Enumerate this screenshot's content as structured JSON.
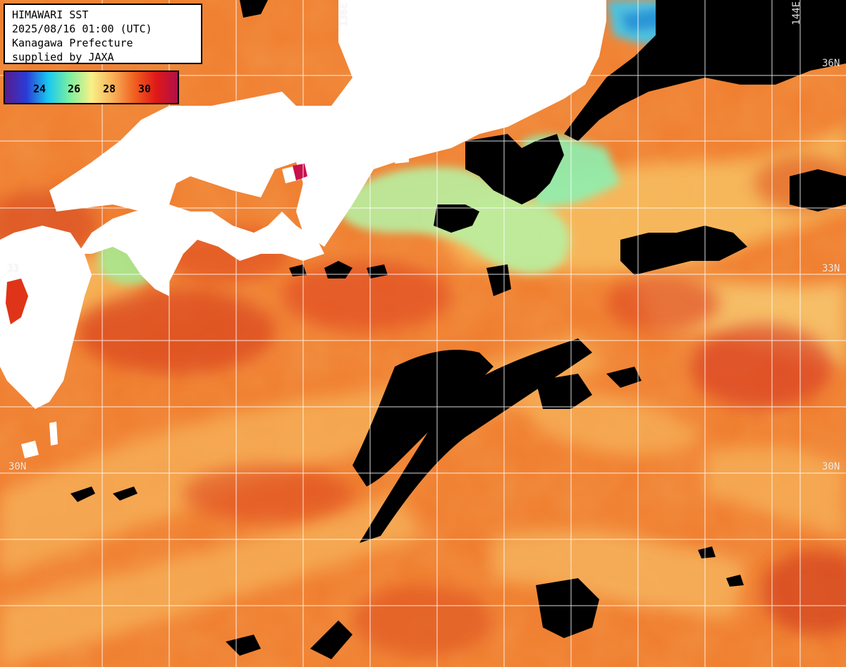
{
  "title_lines": {
    "line1": "HIMAWARI SST",
    "line2": "2025/08/16 01:00 (UTC)",
    "line3": "Kanagawa Prefecture",
    "line4": "supplied by JAXA"
  },
  "legend": {
    "ticks": [
      "24",
      "26",
      "28",
      "30"
    ],
    "colors": [
      "#5a1a8c",
      "#2a3cd8",
      "#18c8f0",
      "#7cf0a0",
      "#f8f088",
      "#f8b058",
      "#f06020",
      "#e01818",
      "#b0104a"
    ]
  },
  "grid_labels": {
    "lon_136": "136E",
    "lon_144": "144E",
    "lat_36_right": "36N",
    "lat_33_left": "33",
    "lat_33_right": "33N",
    "lat_30_left": "30N",
    "lat_30_right": "30N"
  },
  "colors": {
    "land": "#ffffff",
    "cloud": "#000000",
    "warm_sea": "#ef7a2c",
    "hot_sea": "#e0401c",
    "cool_sea": "#f7c060",
    "cold_sea": "#8ef0a0",
    "grid": "#ffffff"
  }
}
